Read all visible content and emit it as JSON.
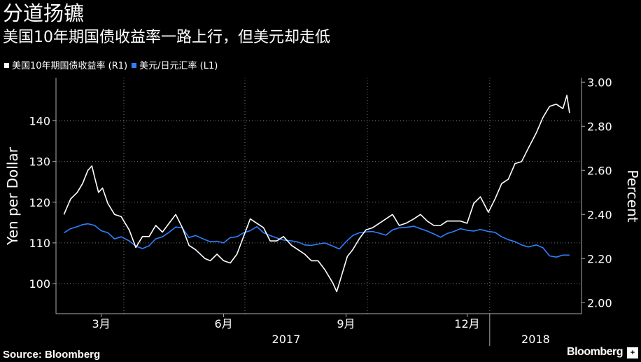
{
  "header": {
    "title": "分道扬镳",
    "subtitle": "美国10年期国债收益率一路上行，但美元却走低"
  },
  "legend": {
    "items": [
      {
        "label": "美国10年期国债收益率 (R1)",
        "color": "#ffffff"
      },
      {
        "label": "美元/日元汇率 (L1)",
        "color": "#2f7fff"
      }
    ]
  },
  "footer": {
    "source": "Source: Bloomberg",
    "brand": "Bloomberg",
    "badge": "+"
  },
  "chart_data": {
    "type": "line",
    "x_tick_labels": [
      "3月",
      "6月",
      "9月",
      "12月"
    ],
    "year_labels": [
      "2017",
      "2018"
    ],
    "left_axis": {
      "label": "Yen per Dollar",
      "ticks": [
        100,
        110,
        120,
        130,
        140
      ],
      "range": [
        92.6,
        150.6
      ]
    },
    "right_axis": {
      "label": "Percent",
      "ticks": [
        "2.00",
        "2.20",
        "2.40",
        "2.60",
        "2.80",
        "3.00"
      ],
      "range": [
        1.95,
        3.02
      ]
    },
    "series": [
      {
        "name": "美国10年期国债收益率 (R1)",
        "axis": "right",
        "color": "#ffffff",
        "x": [
          "2017-02-15",
          "2017-02-20",
          "2017-02-25",
          "2017-03-01",
          "2017-03-05",
          "2017-03-08",
          "2017-03-10",
          "2017-03-13",
          "2017-03-16",
          "2017-03-20",
          "2017-03-25",
          "2017-03-30",
          "2017-04-05",
          "2017-04-10",
          "2017-04-15",
          "2017-04-20",
          "2017-04-25",
          "2017-04-30",
          "2017-05-05",
          "2017-05-10",
          "2017-05-15",
          "2017-05-20",
          "2017-05-25",
          "2017-06-01",
          "2017-06-05",
          "2017-06-10",
          "2017-06-15",
          "2017-06-20",
          "2017-06-25",
          "2017-06-30",
          "2017-07-05",
          "2017-07-10",
          "2017-07-15",
          "2017-07-20",
          "2017-07-25",
          "2017-07-30",
          "2017-08-05",
          "2017-08-10",
          "2017-08-15",
          "2017-08-20",
          "2017-08-25",
          "2017-08-30",
          "2017-09-05",
          "2017-09-08",
          "2017-09-12",
          "2017-09-16",
          "2017-09-20",
          "2017-09-25",
          "2017-09-30",
          "2017-10-05",
          "2017-10-10",
          "2017-10-15",
          "2017-10-20",
          "2017-10-25",
          "2017-10-30",
          "2017-11-05",
          "2017-11-10",
          "2017-11-15",
          "2017-11-20",
          "2017-11-25",
          "2017-11-30",
          "2017-12-05",
          "2017-12-10",
          "2017-12-15",
          "2017-12-20",
          "2017-12-25",
          "2017-12-31",
          "2018-01-05",
          "2018-01-10",
          "2018-01-15",
          "2018-01-20",
          "2018-01-25",
          "2018-01-30",
          "2018-02-05",
          "2018-02-10",
          "2018-02-15",
          "2018-02-20",
          "2018-02-25",
          "2018-02-28",
          "2018-03-02"
        ],
        "values": [
          2.4,
          2.47,
          2.5,
          2.54,
          2.6,
          2.62,
          2.57,
          2.5,
          2.52,
          2.45,
          2.4,
          2.39,
          2.33,
          2.25,
          2.3,
          2.3,
          2.35,
          2.32,
          2.36,
          2.4,
          2.34,
          2.26,
          2.24,
          2.2,
          2.19,
          2.22,
          2.19,
          2.18,
          2.22,
          2.3,
          2.38,
          2.36,
          2.34,
          2.28,
          2.28,
          2.3,
          2.26,
          2.24,
          2.22,
          2.19,
          2.19,
          2.15,
          2.09,
          2.05,
          2.13,
          2.21,
          2.24,
          2.29,
          2.33,
          2.34,
          2.36,
          2.38,
          2.4,
          2.35,
          2.36,
          2.38,
          2.4,
          2.37,
          2.35,
          2.35,
          2.37,
          2.37,
          2.37,
          2.36,
          2.45,
          2.48,
          2.41,
          2.47,
          2.54,
          2.56,
          2.63,
          2.64,
          2.7,
          2.77,
          2.84,
          2.89,
          2.9,
          2.88,
          2.94,
          2.86
        ]
      },
      {
        "name": "美元/日元汇率 (L1)",
        "axis": "left",
        "color": "#2f7fff",
        "x": [
          "2017-02-15",
          "2017-02-20",
          "2017-02-25",
          "2017-03-01",
          "2017-03-05",
          "2017-03-10",
          "2017-03-15",
          "2017-03-20",
          "2017-03-25",
          "2017-03-30",
          "2017-04-05",
          "2017-04-10",
          "2017-04-15",
          "2017-04-20",
          "2017-04-25",
          "2017-04-30",
          "2017-05-05",
          "2017-05-10",
          "2017-05-15",
          "2017-05-20",
          "2017-05-25",
          "2017-06-01",
          "2017-06-05",
          "2017-06-10",
          "2017-06-15",
          "2017-06-20",
          "2017-06-25",
          "2017-06-30",
          "2017-07-05",
          "2017-07-10",
          "2017-07-15",
          "2017-07-20",
          "2017-07-25",
          "2017-07-30",
          "2017-08-05",
          "2017-08-10",
          "2017-08-15",
          "2017-08-20",
          "2017-08-25",
          "2017-08-30",
          "2017-09-05",
          "2017-09-10",
          "2017-09-15",
          "2017-09-20",
          "2017-09-25",
          "2017-09-30",
          "2017-10-05",
          "2017-10-10",
          "2017-10-15",
          "2017-10-20",
          "2017-10-25",
          "2017-10-30",
          "2017-11-05",
          "2017-11-10",
          "2017-11-15",
          "2017-11-20",
          "2017-11-25",
          "2017-11-30",
          "2017-12-05",
          "2017-12-10",
          "2017-12-15",
          "2017-12-20",
          "2017-12-25",
          "2017-12-31",
          "2018-01-05",
          "2018-01-10",
          "2018-01-15",
          "2018-01-20",
          "2018-01-25",
          "2018-01-30",
          "2018-02-05",
          "2018-02-10",
          "2018-02-15",
          "2018-02-20",
          "2018-02-25",
          "2018-03-02"
        ],
        "values": [
          112.5,
          113.5,
          114.0,
          114.5,
          114.7,
          114.3,
          113.0,
          112.5,
          111.0,
          111.5,
          110.5,
          109.2,
          108.6,
          109.3,
          111.0,
          111.5,
          112.6,
          113.9,
          113.7,
          111.3,
          111.8,
          110.8,
          110.3,
          110.4,
          110.0,
          111.3,
          111.5,
          112.5,
          113.0,
          114.0,
          112.5,
          111.8,
          111.2,
          110.7,
          110.5,
          110.2,
          109.5,
          109.4,
          109.7,
          110.0,
          109.2,
          108.5,
          110.3,
          111.8,
          112.5,
          112.7,
          112.8,
          112.4,
          111.9,
          113.2,
          113.7,
          113.8,
          114.1,
          113.5,
          112.9,
          112.2,
          111.4,
          112.3,
          112.8,
          113.5,
          113.1,
          112.9,
          113.3,
          112.8,
          112.6,
          111.5,
          110.8,
          110.3,
          109.5,
          109.0,
          109.5,
          108.8,
          106.8,
          106.5,
          107.0,
          107.0
        ]
      }
    ],
    "grid": true,
    "legend_position": "top-left"
  }
}
